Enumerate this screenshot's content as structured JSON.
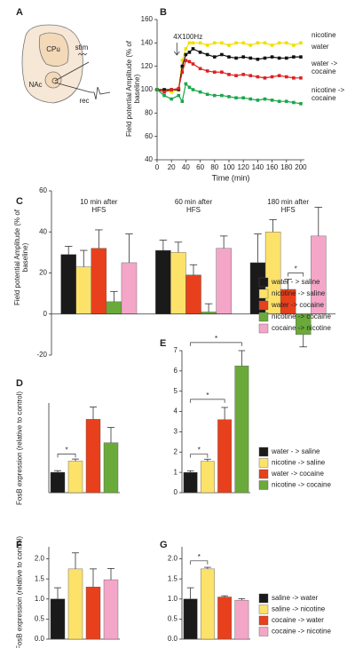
{
  "panel_a": {
    "label": "A",
    "cpu": "CPu",
    "stim": "stim",
    "nac": "NAc",
    "rec": "rec"
  },
  "chart_data": [
    {
      "panel": "B",
      "type": "line",
      "ylabel": "Field potential Amplitude (% of baseline)",
      "xlabel": "Time (min)",
      "annotation": "4X100Hz",
      "xlim": [
        0,
        205
      ],
      "xticks": [
        0,
        20,
        40,
        60,
        80,
        100,
        120,
        140,
        160,
        180,
        200
      ],
      "ylim": [
        40,
        160
      ],
      "yticks": [
        40,
        60,
        80,
        100,
        120,
        140,
        160
      ],
      "x": [
        0,
        10,
        20,
        30,
        35,
        40,
        45,
        50,
        60,
        70,
        80,
        90,
        100,
        110,
        120,
        130,
        140,
        150,
        160,
        170,
        180,
        190,
        200
      ],
      "series": [
        {
          "name": "nicotine",
          "color": "#f0e000",
          "values": [
            100,
            100,
            98,
            100,
            125,
            135,
            140,
            140,
            140,
            138,
            140,
            140,
            138,
            140,
            140,
            138,
            140,
            140,
            138,
            140,
            140,
            138,
            140
          ]
        },
        {
          "name": "water",
          "color": "#111111",
          "values": [
            100,
            100,
            100,
            100,
            120,
            130,
            132,
            135,
            132,
            130,
            128,
            130,
            128,
            127,
            128,
            127,
            126,
            127,
            128,
            127,
            127,
            128,
            128
          ]
        },
        {
          "name": "water -> cocaine",
          "color": "#e02020",
          "values": [
            100,
            98,
            100,
            101,
            115,
            125,
            124,
            122,
            118,
            116,
            115,
            115,
            113,
            112,
            113,
            112,
            111,
            110,
            111,
            112,
            111,
            110,
            110
          ]
        },
        {
          "name": "nicotine -> cocaine",
          "color": "#1aa84a",
          "values": [
            100,
            95,
            92,
            95,
            90,
            105,
            102,
            100,
            98,
            96,
            95,
            95,
            94,
            93,
            93,
            92,
            91,
            92,
            91,
            90,
            90,
            89,
            88
          ]
        }
      ]
    },
    {
      "panel": "C",
      "type": "grouped_bar",
      "ylabel": "Field potential Amplitude (% of baseline)",
      "categories": [
        "10 min after HFS",
        "60 min after HFS",
        "180 min after HFS"
      ],
      "ylim": [
        -20,
        60
      ],
      "yticks": [
        -20,
        0,
        20,
        40,
        60
      ],
      "annotations": [
        "*"
      ],
      "series": [
        {
          "name": "water - > saline",
          "color": "#1a1a1a",
          "values": [
            29,
            31,
            25
          ],
          "errors": [
            4,
            5,
            14
          ]
        },
        {
          "name": "nicotine -> saline",
          "color": "#fde26a",
          "values": [
            23,
            30,
            40
          ],
          "errors": [
            8,
            5,
            6
          ]
        },
        {
          "name": "water -> cocaine",
          "color": "#e8401c",
          "values": [
            32,
            19,
            12
          ],
          "errors": [
            9,
            5,
            5
          ]
        },
        {
          "name": "nicotine -> cocaine",
          "color": "#6aaa3a",
          "values": [
            6,
            1,
            -10
          ],
          "errors": [
            5,
            4,
            6
          ]
        },
        {
          "name": "cocaine -> nicotine",
          "color": "#f4a6c8",
          "values": [
            25,
            32,
            38
          ],
          "errors": [
            14,
            6,
            14
          ]
        }
      ]
    },
    {
      "panel": "D",
      "type": "bar",
      "ylabel": "FosB expression (relative to control)",
      "ylim": [
        0,
        4.4
      ],
      "annotations": [
        "*"
      ],
      "categories": [
        null,
        null,
        null,
        null
      ],
      "colors": [
        "#1a1a1a",
        "#fde26a",
        "#e8401c",
        "#6aaa3a"
      ],
      "values": [
        1.0,
        1.55,
        3.6,
        2.45
      ],
      "errors": [
        0.08,
        0.1,
        0.6,
        0.75
      ]
    },
    {
      "panel": "E",
      "type": "bar",
      "ylim": [
        0,
        7
      ],
      "yticks": [
        0,
        1,
        2,
        3,
        4,
        5,
        6,
        7
      ],
      "annotations": [
        "*",
        "*",
        "*"
      ],
      "categories": [
        "water - > saline",
        "nicotine -> saline",
        "water -> cocaine",
        "nicotine -> cocaine"
      ],
      "colors": [
        "#1a1a1a",
        "#fde26a",
        "#e8401c",
        "#6aaa3a"
      ],
      "values": [
        1.0,
        1.55,
        3.6,
        6.25
      ],
      "errors": [
        0.08,
        0.1,
        0.6,
        0.75
      ]
    },
    {
      "panel": "F",
      "type": "bar",
      "ylabel": "FosB expression (relative to control)",
      "ylim": [
        0,
        2.3
      ],
      "yticks": [
        {
          "value": 0,
          "label": "0.0"
        },
        {
          "value": 0.5,
          "label": "0.5"
        },
        {
          "value": 1,
          "label": "1.0"
        },
        {
          "value": 1.5,
          "label": "1.5"
        },
        {
          "value": 2,
          "label": "2.0"
        }
      ],
      "categories": [
        null,
        null,
        null,
        null
      ],
      "colors": [
        "#1a1a1a",
        "#fde26a",
        "#e8401c",
        "#f4a6c8"
      ],
      "values": [
        1.0,
        1.75,
        1.3,
        1.48
      ],
      "errors": [
        0.28,
        0.4,
        0.45,
        0.28
      ]
    },
    {
      "panel": "G",
      "type": "bar",
      "ylim": [
        0,
        2.3
      ],
      "annotations": [
        "*"
      ],
      "yticks": [
        {
          "value": 0,
          "label": "0.0"
        },
        {
          "value": 0.5,
          "label": "0.5"
        },
        {
          "value": 1,
          "label": "1.0"
        },
        {
          "value": 1.5,
          "label": "1.5"
        },
        {
          "value": 2,
          "label": "2.0"
        }
      ],
      "categories": [
        "saline -> water",
        "saline -> nicotine",
        "cocaine -> water",
        "cocaine -> nicotine"
      ],
      "colors": [
        "#1a1a1a",
        "#fde26a",
        "#e8401c",
        "#f4a6c8"
      ],
      "values": [
        1.0,
        1.75,
        1.05,
        0.97
      ],
      "errors": [
        0.28,
        0.04,
        0.03,
        0.04
      ]
    }
  ]
}
